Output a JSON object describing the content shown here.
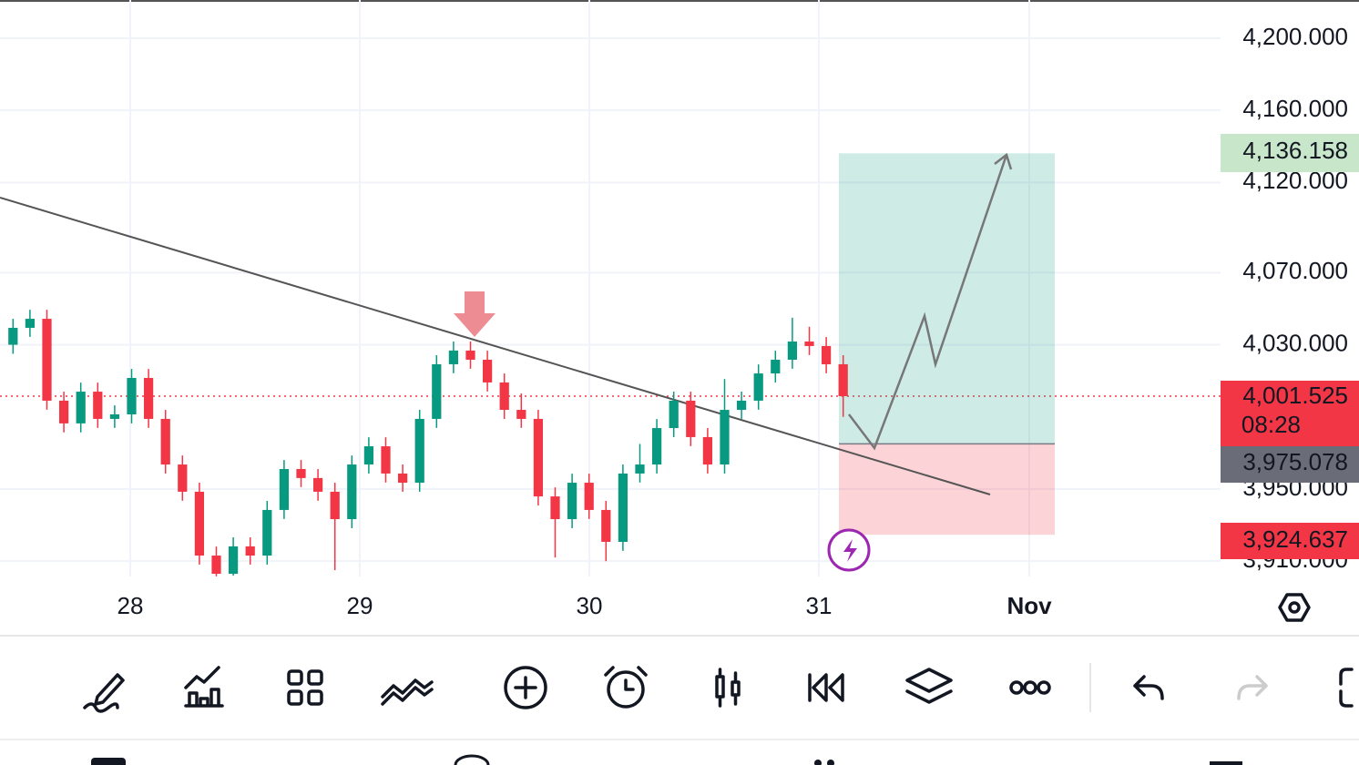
{
  "chart_data": {
    "type": "candlestick",
    "ohlc": [
      [
        4030,
        4044.4,
        4025,
        4039.4
      ],
      [
        4039.4,
        4049.4,
        4034.4,
        4044.4
      ],
      [
        4044.4,
        4049.4,
        3994,
        3999
      ],
      [
        3999,
        4004,
        3981.4,
        3986.4
      ],
      [
        3986.4,
        4009,
        3981.4,
        4004
      ],
      [
        4004,
        4009,
        3983.9,
        3988.9
      ],
      [
        3988.9,
        3996.4,
        3983.9,
        3991.4
      ],
      [
        3991.4,
        4016.6,
        3986.4,
        4011.6
      ],
      [
        4011.6,
        4016.6,
        3983.9,
        3988.9
      ],
      [
        3988.9,
        3993.9,
        3958.6,
        3963.6
      ],
      [
        3963.6,
        3968.6,
        3943.5,
        3948.5
      ],
      [
        3948.5,
        3953.5,
        3908.1,
        3913.1
      ],
      [
        3913.1,
        3918.1,
        3901.6,
        3903
      ],
      [
        3903,
        3923.2,
        3902,
        3918.2
      ],
      [
        3918.2,
        3923.2,
        3908.1,
        3913.1
      ],
      [
        3913.1,
        3943.4,
        3908.1,
        3938.4
      ],
      [
        3938.4,
        3966.1,
        3933.4,
        3961.1
      ],
      [
        3961.1,
        3966.1,
        3951.1,
        3956.1
      ],
      [
        3956.1,
        3961.1,
        3943.5,
        3948.5
      ],
      [
        3948.5,
        3953.5,
        3905,
        3933.3
      ],
      [
        3933.3,
        3968.6,
        3928.3,
        3963.6
      ],
      [
        3963.6,
        3978.7,
        3958.6,
        3973.7
      ],
      [
        3973.7,
        3978.7,
        3953.6,
        3958.6
      ],
      [
        3958.6,
        3963.6,
        3948.5,
        3953.5
      ],
      [
        3953.5,
        3993.9,
        3948.5,
        3988.9
      ],
      [
        3988.9,
        4024.2,
        3983.9,
        4019.2
      ],
      [
        4019.2,
        4031.8,
        4014.2,
        4026.8
      ],
      [
        4026.8,
        4031.8,
        4016.7,
        4021.7
      ],
      [
        4021.7,
        4026.7,
        4004.1,
        4009.1
      ],
      [
        4009.1,
        4014.1,
        3988.9,
        3993.9
      ],
      [
        3993.9,
        4003,
        3983.9,
        3988.9
      ],
      [
        3988.9,
        3993.9,
        3940.9,
        3945.9
      ],
      [
        3945.9,
        3950.9,
        3912,
        3933.3
      ],
      [
        3933.3,
        3958.5,
        3928.3,
        3953.5
      ],
      [
        3953.5,
        3958.5,
        3933.4,
        3938.4
      ],
      [
        3938.4,
        3943.4,
        3910,
        3920.7
      ],
      [
        3920.7,
        3963.6,
        3915.7,
        3958.6
      ],
      [
        3958.6,
        3975,
        3953.6,
        3963.6
      ],
      [
        3963.6,
        3988.8,
        3958.6,
        3983.8
      ],
      [
        3983.8,
        4004,
        3978.8,
        3999
      ],
      [
        3999,
        4004,
        3973.8,
        3978.8
      ],
      [
        3978.8,
        3983.8,
        3958.6,
        3963.6
      ],
      [
        3963.6,
        4011,
        3958.6,
        3993.9
      ],
      [
        3993.9,
        4004,
        3988.9,
        3999
      ],
      [
        3999,
        4019.1,
        3994,
        4014.1
      ],
      [
        4014.1,
        4026.7,
        4009.1,
        4021.7
      ],
      [
        4021.7,
        4045,
        4016.7,
        4031.8
      ],
      [
        4031.8,
        4040,
        4024.3,
        4029.3
      ],
      [
        4029.3,
        4034.3,
        4014.2,
        4019.2
      ],
      [
        4019.2,
        4024.2,
        3990,
        4001.5
      ]
    ],
    "up_color": "#089981",
    "down_color": "#f23645",
    "ylim": [
      3901.5,
      4221.2
    ],
    "yticks": [
      {
        "value": 4200,
        "label": "4,200.000"
      },
      {
        "value": 4160,
        "label": "4,160.000"
      },
      {
        "value": 4120,
        "label": "4,120.000"
      },
      {
        "value": 4070,
        "label": "4,070.000"
      },
      {
        "value": 4030,
        "label": "4,030.000"
      },
      {
        "value": 3950,
        "label": "3,950.000"
      },
      {
        "value": 3910,
        "label": "3,910.000"
      }
    ],
    "grid": true,
    "date_labels": [
      "28",
      "29",
      "30",
      "31",
      "Nov"
    ],
    "target_price": {
      "value": 4136.158,
      "label": "4,136.158"
    },
    "last_price": {
      "value": 4001.525,
      "label": "4,001.525"
    },
    "countdown": "08:28",
    "entry_price": {
      "value": 3975.078,
      "label": "3,975.078"
    },
    "stop_price": {
      "value": 3924.637,
      "label": "3,924.637"
    }
  }
}
